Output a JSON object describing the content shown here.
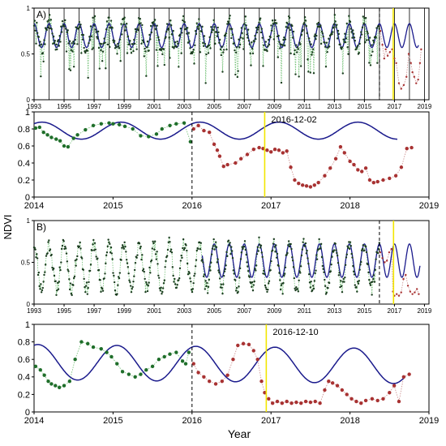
{
  "figure": {
    "y_axis_label": "NDVI",
    "x_axis_label": "Year"
  },
  "chart_data": [
    {
      "id": "A-overview",
      "type": "line",
      "panel_label": "A)",
      "xlim": [
        1993.0,
        2019.3
      ],
      "ylim": [
        0,
        1
      ],
      "yticks": [
        0,
        0.5,
        1
      ],
      "yticklabels": [
        "0",
        "0.5",
        "1"
      ],
      "xticks": [
        1993,
        1995,
        1997,
        1999,
        2001,
        2003,
        2005,
        2007,
        2009,
        2011,
        2013,
        2015,
        2017,
        2019
      ],
      "grid_x": [
        1993,
        1994,
        1995,
        1996,
        1997,
        1998,
        1999,
        2000,
        2001,
        2002,
        2003,
        2004,
        2005,
        2006,
        2007,
        2008,
        2009,
        2010,
        2011,
        2012,
        2013,
        2014,
        2015,
        2016,
        2017,
        2018,
        2019
      ],
      "breakpoint": 2016.0,
      "detection": 2016.92,
      "model": {
        "base": 0.7,
        "amp": 0.13,
        "trend": 0.0,
        "phase": 0.0,
        "start": 1993.0,
        "end": 2018.6
      },
      "points_pre": {
        "start": 1993.0,
        "end": 2016.0,
        "step": 0.045,
        "base": 0.7,
        "amp": 0.15,
        "noise": 0.08,
        "dip_prob": 0.12,
        "seed": 7
      },
      "points_post": [
        {
          "x": 2016.06,
          "y": 0.75
        },
        {
          "x": 2016.2,
          "y": 0.6
        },
        {
          "x": 2016.32,
          "y": 0.45
        },
        {
          "x": 2016.42,
          "y": 0.55
        },
        {
          "x": 2016.55,
          "y": 0.48
        },
        {
          "x": 2016.7,
          "y": 0.52
        },
        {
          "x": 2016.85,
          "y": 0.55
        },
        {
          "x": 2017.0,
          "y": 0.45
        },
        {
          "x": 2017.12,
          "y": 0.4
        },
        {
          "x": 2017.3,
          "y": 0.18
        },
        {
          "x": 2017.45,
          "y": 0.12
        },
        {
          "x": 2017.62,
          "y": 0.16
        },
        {
          "x": 2017.8,
          "y": 0.25
        },
        {
          "x": 2017.95,
          "y": 0.5
        },
        {
          "x": 2018.1,
          "y": 0.4
        },
        {
          "x": 2018.2,
          "y": 0.3
        },
        {
          "x": 2018.32,
          "y": 0.25
        },
        {
          "x": 2018.45,
          "y": 0.18
        },
        {
          "x": 2018.58,
          "y": 0.22
        },
        {
          "x": 2018.7,
          "y": 0.4
        },
        {
          "x": 2018.78,
          "y": 0.55
        }
      ]
    },
    {
      "id": "A-zoom",
      "type": "line",
      "panel_label": "",
      "detection_label": "2016-12-02",
      "xlim": [
        2014.0,
        2019.0
      ],
      "ylim": [
        0,
        1.0
      ],
      "yticks": [
        0,
        0.2,
        0.4,
        0.6,
        0.8,
        1
      ],
      "yticklabels": [
        "0",
        "0.2",
        "0.4",
        "0.6",
        "0.8",
        "1"
      ],
      "xticks": [
        2014,
        2015,
        2016,
        2017,
        2018,
        2019
      ],
      "breakpoint": 2016.0,
      "detection": 2016.92,
      "model": {
        "base": 0.78,
        "amp": 0.1,
        "trend": 0.0,
        "phase": 0.1,
        "start": 2014.0,
        "end": 2018.6
      },
      "points_pre": [
        {
          "x": 2014.02,
          "y": 0.81
        },
        {
          "x": 2014.07,
          "y": 0.82
        },
        {
          "x": 2014.12,
          "y": 0.76
        },
        {
          "x": 2014.17,
          "y": 0.73
        },
        {
          "x": 2014.22,
          "y": 0.7
        },
        {
          "x": 2014.28,
          "y": 0.68
        },
        {
          "x": 2014.33,
          "y": 0.66
        },
        {
          "x": 2014.38,
          "y": 0.6
        },
        {
          "x": 2014.43,
          "y": 0.59
        },
        {
          "x": 2014.5,
          "y": 0.69
        },
        {
          "x": 2014.55,
          "y": 0.73
        },
        {
          "x": 2014.65,
          "y": 0.79
        },
        {
          "x": 2014.75,
          "y": 0.84
        },
        {
          "x": 2014.85,
          "y": 0.86
        },
        {
          "x": 2014.95,
          "y": 0.87
        },
        {
          "x": 2015.0,
          "y": 0.86
        },
        {
          "x": 2015.08,
          "y": 0.85
        },
        {
          "x": 2015.15,
          "y": 0.83
        },
        {
          "x": 2015.25,
          "y": 0.8
        },
        {
          "x": 2015.35,
          "y": 0.72
        },
        {
          "x": 2015.45,
          "y": 0.71
        },
        {
          "x": 2015.55,
          "y": 0.74
        },
        {
          "x": 2015.62,
          "y": 0.8
        },
        {
          "x": 2015.72,
          "y": 0.84
        },
        {
          "x": 2015.8,
          "y": 0.86
        },
        {
          "x": 2015.9,
          "y": 0.87
        },
        {
          "x": 2015.98,
          "y": 0.65
        }
      ],
      "points_post": [
        {
          "x": 2016.02,
          "y": 0.8
        },
        {
          "x": 2016.08,
          "y": 0.84
        },
        {
          "x": 2016.15,
          "y": 0.78
        },
        {
          "x": 2016.22,
          "y": 0.76
        },
        {
          "x": 2016.28,
          "y": 0.62
        },
        {
          "x": 2016.32,
          "y": 0.55
        },
        {
          "x": 2016.35,
          "y": 0.48
        },
        {
          "x": 2016.4,
          "y": 0.36
        },
        {
          "x": 2016.45,
          "y": 0.38
        },
        {
          "x": 2016.55,
          "y": 0.4
        },
        {
          "x": 2016.62,
          "y": 0.45
        },
        {
          "x": 2016.7,
          "y": 0.5
        },
        {
          "x": 2016.78,
          "y": 0.56
        },
        {
          "x": 2016.85,
          "y": 0.58
        },
        {
          "x": 2016.9,
          "y": 0.57
        },
        {
          "x": 2016.95,
          "y": 0.55
        },
        {
          "x": 2017.0,
          "y": 0.53
        },
        {
          "x": 2017.05,
          "y": 0.56
        },
        {
          "x": 2017.1,
          "y": 0.55
        },
        {
          "x": 2017.15,
          "y": 0.52
        },
        {
          "x": 2017.2,
          "y": 0.54
        },
        {
          "x": 2017.25,
          "y": 0.35
        },
        {
          "x": 2017.3,
          "y": 0.2
        },
        {
          "x": 2017.35,
          "y": 0.16
        },
        {
          "x": 2017.4,
          "y": 0.14
        },
        {
          "x": 2017.45,
          "y": 0.13
        },
        {
          "x": 2017.5,
          "y": 0.12
        },
        {
          "x": 2017.55,
          "y": 0.14
        },
        {
          "x": 2017.6,
          "y": 0.17
        },
        {
          "x": 2017.68,
          "y": 0.25
        },
        {
          "x": 2017.75,
          "y": 0.34
        },
        {
          "x": 2017.82,
          "y": 0.45
        },
        {
          "x": 2017.88,
          "y": 0.59
        },
        {
          "x": 2017.93,
          "y": 0.52
        },
        {
          "x": 2018.0,
          "y": 0.42
        },
        {
          "x": 2018.05,
          "y": 0.38
        },
        {
          "x": 2018.1,
          "y": 0.32
        },
        {
          "x": 2018.15,
          "y": 0.3
        },
        {
          "x": 2018.2,
          "y": 0.34
        },
        {
          "x": 2018.25,
          "y": 0.2
        },
        {
          "x": 2018.3,
          "y": 0.17
        },
        {
          "x": 2018.35,
          "y": 0.18
        },
        {
          "x": 2018.42,
          "y": 0.2
        },
        {
          "x": 2018.5,
          "y": 0.22
        },
        {
          "x": 2018.58,
          "y": 0.25
        },
        {
          "x": 2018.65,
          "y": 0.35
        },
        {
          "x": 2018.72,
          "y": 0.57
        },
        {
          "x": 2018.78,
          "y": 0.58
        }
      ]
    },
    {
      "id": "B-overview",
      "type": "line",
      "panel_label": "B)",
      "xlim": [
        1993.0,
        2019.3
      ],
      "ylim": [
        0,
        1
      ],
      "yticks": [
        0,
        0.5,
        1
      ],
      "yticklabels": [
        "0",
        "0.5",
        "1"
      ],
      "xticks": [
        1993,
        1995,
        1997,
        1999,
        2001,
        2003,
        2005,
        2007,
        2009,
        2011,
        2013,
        2015,
        2017,
        2019
      ],
      "grid_x": [],
      "breakpoint": 2016.0,
      "detection": 2016.94,
      "model": {
        "base": 0.52,
        "amp": 0.2,
        "trend": 0.0,
        "phase": 0.0,
        "start": 2004.2,
        "end": 2018.7
      },
      "points_pre": {
        "start": 1993.0,
        "end": 2016.0,
        "step": 0.045,
        "base": 0.45,
        "amp": 0.27,
        "noise": 0.08,
        "dip_prob": 0.0,
        "seed": 11
      },
      "points_post": [
        {
          "x": 2016.05,
          "y": 0.62
        },
        {
          "x": 2016.2,
          "y": 0.55
        },
        {
          "x": 2016.35,
          "y": 0.5
        },
        {
          "x": 2016.5,
          "y": 0.52
        },
        {
          "x": 2016.65,
          "y": 0.62
        },
        {
          "x": 2016.8,
          "y": 0.66
        },
        {
          "x": 2016.9,
          "y": 0.15
        },
        {
          "x": 2017.0,
          "y": 0.1
        },
        {
          "x": 2017.15,
          "y": 0.12
        },
        {
          "x": 2017.3,
          "y": 0.1
        },
        {
          "x": 2017.45,
          "y": 0.14
        },
        {
          "x": 2017.6,
          "y": 0.3
        },
        {
          "x": 2017.75,
          "y": 0.35
        },
        {
          "x": 2017.9,
          "y": 0.22
        },
        {
          "x": 2018.05,
          "y": 0.15
        },
        {
          "x": 2018.2,
          "y": 0.12
        },
        {
          "x": 2018.35,
          "y": 0.14
        },
        {
          "x": 2018.5,
          "y": 0.18
        },
        {
          "x": 2018.62,
          "y": 0.12
        }
      ]
    },
    {
      "id": "B-zoom",
      "type": "line",
      "panel_label": "",
      "detection_label": "2016-12-10",
      "xlim": [
        2014.0,
        2019.0
      ],
      "ylim": [
        0,
        1.0
      ],
      "yticks": [
        0,
        0.2,
        0.4,
        0.6,
        0.8,
        1
      ],
      "yticklabels": [
        "0",
        "0.2",
        "0.4",
        "0.6",
        "0.8",
        "1"
      ],
      "xticks": [
        2014,
        2015,
        2016,
        2017,
        2018,
        2019
      ],
      "breakpoint": 2016.0,
      "detection": 2016.94,
      "model": {
        "base": 0.57,
        "amp": 0.2,
        "trend": -0.01,
        "phase": 0.05,
        "start": 2014.0,
        "end": 2018.7
      },
      "points_pre": [
        {
          "x": 2014.02,
          "y": 0.52
        },
        {
          "x": 2014.08,
          "y": 0.48
        },
        {
          "x": 2014.13,
          "y": 0.42
        },
        {
          "x": 2014.18,
          "y": 0.35
        },
        {
          "x": 2014.22,
          "y": 0.32
        },
        {
          "x": 2014.27,
          "y": 0.3
        },
        {
          "x": 2014.32,
          "y": 0.28
        },
        {
          "x": 2014.38,
          "y": 0.3
        },
        {
          "x": 2014.45,
          "y": 0.35
        },
        {
          "x": 2014.52,
          "y": 0.6
        },
        {
          "x": 2014.6,
          "y": 0.8
        },
        {
          "x": 2014.68,
          "y": 0.78
        },
        {
          "x": 2014.75,
          "y": 0.74
        },
        {
          "x": 2014.85,
          "y": 0.72
        },
        {
          "x": 2014.92,
          "y": 0.68
        },
        {
          "x": 2014.98,
          "y": 0.63
        },
        {
          "x": 2015.05,
          "y": 0.55
        },
        {
          "x": 2015.12,
          "y": 0.46
        },
        {
          "x": 2015.2,
          "y": 0.43
        },
        {
          "x": 2015.28,
          "y": 0.4
        },
        {
          "x": 2015.35,
          "y": 0.43
        },
        {
          "x": 2015.42,
          "y": 0.48
        },
        {
          "x": 2015.5,
          "y": 0.52
        },
        {
          "x": 2015.58,
          "y": 0.6
        },
        {
          "x": 2015.65,
          "y": 0.63
        },
        {
          "x": 2015.72,
          "y": 0.66
        },
        {
          "x": 2015.8,
          "y": 0.68
        },
        {
          "x": 2015.88,
          "y": 0.58
        },
        {
          "x": 2015.92,
          "y": 0.55
        },
        {
          "x": 2015.96,
          "y": 0.68
        }
      ],
      "points_post": [
        {
          "x": 2016.02,
          "y": 0.55
        },
        {
          "x": 2016.08,
          "y": 0.45
        },
        {
          "x": 2016.15,
          "y": 0.4
        },
        {
          "x": 2016.22,
          "y": 0.35
        },
        {
          "x": 2016.3,
          "y": 0.32
        },
        {
          "x": 2016.38,
          "y": 0.35
        },
        {
          "x": 2016.45,
          "y": 0.42
        },
        {
          "x": 2016.52,
          "y": 0.6
        },
        {
          "x": 2016.58,
          "y": 0.76
        },
        {
          "x": 2016.65,
          "y": 0.78
        },
        {
          "x": 2016.72,
          "y": 0.77
        },
        {
          "x": 2016.78,
          "y": 0.7
        },
        {
          "x": 2016.83,
          "y": 0.6
        },
        {
          "x": 2016.88,
          "y": 0.35
        },
        {
          "x": 2016.92,
          "y": 0.22
        },
        {
          "x": 2016.97,
          "y": 0.15
        },
        {
          "x": 2017.02,
          "y": 0.1
        },
        {
          "x": 2017.08,
          "y": 0.12
        },
        {
          "x": 2017.14,
          "y": 0.1
        },
        {
          "x": 2017.2,
          "y": 0.12
        },
        {
          "x": 2017.26,
          "y": 0.1
        },
        {
          "x": 2017.32,
          "y": 0.11
        },
        {
          "x": 2017.38,
          "y": 0.1
        },
        {
          "x": 2017.44,
          "y": 0.12
        },
        {
          "x": 2017.5,
          "y": 0.11
        },
        {
          "x": 2017.56,
          "y": 0.12
        },
        {
          "x": 2017.62,
          "y": 0.1
        },
        {
          "x": 2017.68,
          "y": 0.25
        },
        {
          "x": 2017.73,
          "y": 0.35
        },
        {
          "x": 2017.78,
          "y": 0.33
        },
        {
          "x": 2017.84,
          "y": 0.3
        },
        {
          "x": 2017.9,
          "y": 0.25
        },
        {
          "x": 2017.96,
          "y": 0.2
        },
        {
          "x": 2018.02,
          "y": 0.15
        },
        {
          "x": 2018.08,
          "y": 0.12
        },
        {
          "x": 2018.14,
          "y": 0.1
        },
        {
          "x": 2018.2,
          "y": 0.13
        },
        {
          "x": 2018.28,
          "y": 0.15
        },
        {
          "x": 2018.35,
          "y": 0.13
        },
        {
          "x": 2018.42,
          "y": 0.15
        },
        {
          "x": 2018.5,
          "y": 0.22
        },
        {
          "x": 2018.56,
          "y": 0.3
        },
        {
          "x": 2018.62,
          "y": 0.12
        },
        {
          "x": 2018.68,
          "y": 0.4
        },
        {
          "x": 2018.75,
          "y": 0.43
        }
      ]
    }
  ],
  "colors": {
    "model_line": "#1a1a8c",
    "pre_points": "#1f6e2a",
    "pre_points_overview": "#1b3d1f",
    "post_points": "#a83232",
    "pre_link": "#6fbf73",
    "post_link": "#c98a8a",
    "detection_line": "#f2e600",
    "breakpoint_line": "#000000"
  }
}
